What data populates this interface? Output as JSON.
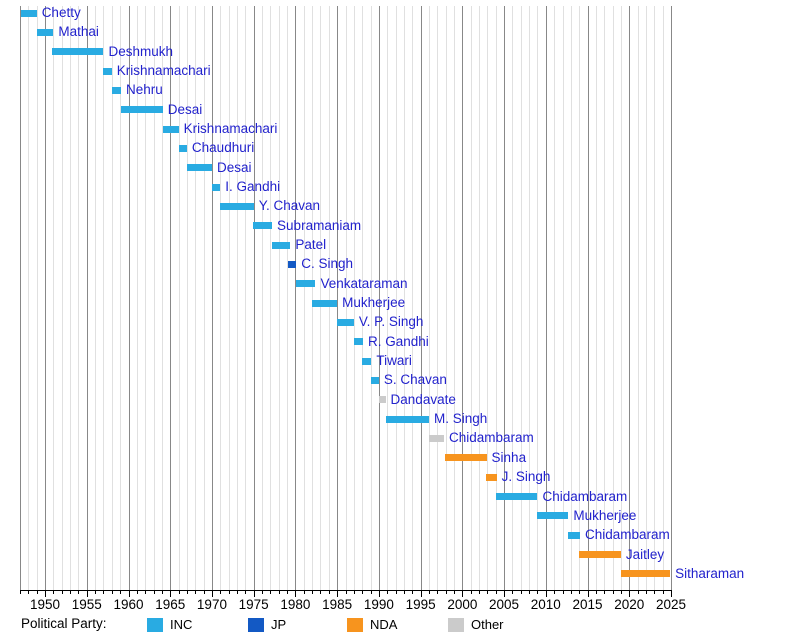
{
  "chart_data": {
    "type": "timeline",
    "title": "",
    "legend_title": "Political Party:",
    "legend_position": "bottom",
    "x_axis": {
      "min": 1947,
      "max": 2025,
      "tick_interval": 5,
      "ticks": [
        1950,
        1955,
        1960,
        1965,
        1970,
        1975,
        1980,
        1985,
        1990,
        1995,
        2000,
        2005,
        2010,
        2015,
        2020,
        2025
      ]
    },
    "legend": [
      {
        "label": "INC",
        "color": "#29ABE2"
      },
      {
        "label": "JP",
        "color": "#1359C4"
      },
      {
        "label": "NDA",
        "color": "#F7941E"
      },
      {
        "label": "Other",
        "color": "#CBCBCB"
      }
    ],
    "style": {
      "name_color": "#2222CC",
      "grid_minor": "#E0E0E0",
      "grid_major": "#888888",
      "axis_color": "#000000"
    },
    "bars": [
      {
        "name": "Chetty",
        "party": "INC",
        "start": 1947.15,
        "end": 1949.0
      },
      {
        "name": "Mathai",
        "party": "INC",
        "start": 1949.0,
        "end": 1951.0
      },
      {
        "name": "Deshmukh",
        "party": "INC",
        "start": 1950.8,
        "end": 1957.0
      },
      {
        "name": "Krishnamachari",
        "party": "INC",
        "start": 1957.0,
        "end": 1958.0
      },
      {
        "name": "Nehru",
        "party": "INC",
        "start": 1958.0,
        "end": 1959.1
      },
      {
        "name": "Desai",
        "party": "INC",
        "start": 1959.1,
        "end": 1964.1
      },
      {
        "name": "Krishnamachari",
        "party": "INC",
        "start": 1964.1,
        "end": 1966.0
      },
      {
        "name": "Chaudhuri",
        "party": "INC",
        "start": 1966.0,
        "end": 1967.0
      },
      {
        "name": "Desai",
        "party": "INC",
        "start": 1967.0,
        "end": 1970.0
      },
      {
        "name": "I. Gandhi",
        "party": "INC",
        "start": 1970.0,
        "end": 1971.0
      },
      {
        "name": "Y. Chavan",
        "party": "INC",
        "start": 1971.0,
        "end": 1975.0
      },
      {
        "name": "Subramaniam",
        "party": "INC",
        "start": 1974.9,
        "end": 1977.2
      },
      {
        "name": "Patel",
        "party": "INC",
        "start": 1977.2,
        "end": 1979.4
      },
      {
        "name": "C. Singh",
        "party": "JP",
        "start": 1979.1,
        "end": 1980.1
      },
      {
        "name": "Venkataraman",
        "party": "INC",
        "start": 1980.1,
        "end": 1982.4
      },
      {
        "name": "Mukherjee",
        "party": "INC",
        "start": 1982.0,
        "end": 1985.0
      },
      {
        "name": "V. P. Singh",
        "party": "INC",
        "start": 1985.0,
        "end": 1987.0
      },
      {
        "name": "R. Gandhi",
        "party": "INC",
        "start": 1987.0,
        "end": 1988.1
      },
      {
        "name": "Tiwari",
        "party": "INC",
        "start": 1988.0,
        "end": 1989.1
      },
      {
        "name": "S. Chavan",
        "party": "INC",
        "start": 1989.0,
        "end": 1990.0
      },
      {
        "name": "Dandavate",
        "party": "Other",
        "start": 1990.0,
        "end": 1990.8
      },
      {
        "name": "M. Singh",
        "party": "INC",
        "start": 1990.8,
        "end": 1996.0
      },
      {
        "name": "Chidambaram",
        "party": "Other",
        "start": 1996.0,
        "end": 1997.8
      },
      {
        "name": "Sinha",
        "party": "NDA",
        "start": 1997.9,
        "end": 2002.9
      },
      {
        "name": "J. Singh",
        "party": "NDA",
        "start": 2002.8,
        "end": 2004.1
      },
      {
        "name": "Chidambaram",
        "party": "INC",
        "start": 2004.0,
        "end": 2009.0
      },
      {
        "name": "Mukherjee",
        "party": "INC",
        "start": 2009.0,
        "end": 2012.7
      },
      {
        "name": "Chidambaram",
        "party": "INC",
        "start": 2012.7,
        "end": 2014.1
      },
      {
        "name": "Jaitley",
        "party": "NDA",
        "start": 2014.0,
        "end": 2019.0
      },
      {
        "name": "Sitharaman",
        "party": "NDA",
        "start": 2019.0,
        "end": 2024.9
      }
    ]
  }
}
